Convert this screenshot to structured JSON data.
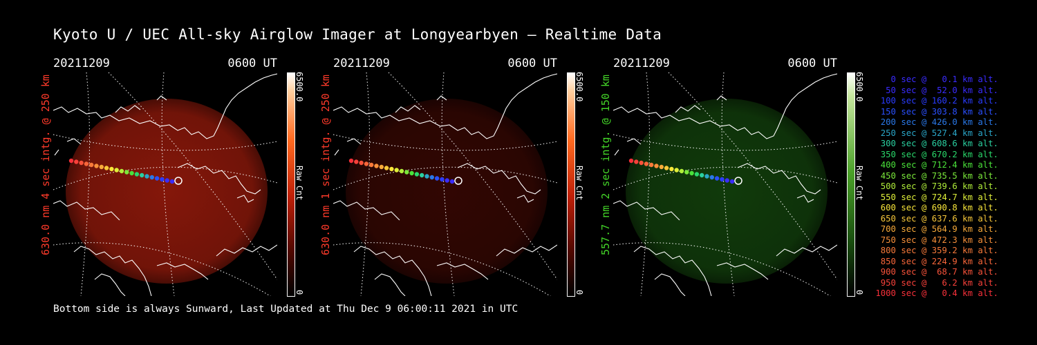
{
  "title": "Kyoto U / UEC All-sky Airglow Imager at Longyearbyen — Realtime Data",
  "footer": "Bottom side is always Sunward, Last Updated at Thu Dec  9 06:00:11 2021 in UTC",
  "panels": [
    {
      "date": "20211209",
      "time": "0600 UT",
      "label": "630.0 nm 4 sec intg. @ 250 km",
      "label_color": "#ff3a2a",
      "cbar_max": "6500.0",
      "cbar_unit": "Raw Cnt",
      "cbar_zero": "0",
      "glow": "#b8200e",
      "glow_opacity": 0.72,
      "ramp": "red"
    },
    {
      "date": "20211209",
      "time": "0600 UT",
      "label": "630.0 nm 1 sec intg. @ 250 km",
      "label_color": "#ff3a2a",
      "cbar_max": "6500.0",
      "cbar_unit": "Raw Cnt",
      "cbar_zero": "0",
      "glow": "#5a0c05",
      "glow_opacity": 0.55,
      "ramp": "red"
    },
    {
      "date": "20211209",
      "time": "0600 UT",
      "label": "557.7 nm 2 sec intg. @ 150 km",
      "label_color": "#44d628",
      "cbar_max": "6500.0",
      "cbar_unit": "Raw Cnt",
      "cbar_zero": "0",
      "glow": "#1e6a14",
      "glow_opacity": 0.55,
      "ramp": "green"
    }
  ],
  "legend": [
    {
      "text": "0 sec @   0.1 km alt.",
      "color": "#3a2cff"
    },
    {
      "text": "50 sec @  52.0 km alt.",
      "color": "#3a2cff"
    },
    {
      "text": "100 sec @ 160.2 km alt.",
      "color": "#2a3cff"
    },
    {
      "text": "150 sec @ 303.8 km alt.",
      "color": "#2a50ff"
    },
    {
      "text": "200 sec @ 426.0 km alt.",
      "color": "#2a78e8"
    },
    {
      "text": "250 sec @ 527.4 km alt.",
      "color": "#2aa6c8"
    },
    {
      "text": "300 sec @ 608.6 km alt.",
      "color": "#2ad0a0"
    },
    {
      "text": "350 sec @ 670.2 km alt.",
      "color": "#2ad86a"
    },
    {
      "text": "400 sec @ 712.4 km alt.",
      "color": "#4ae23a"
    },
    {
      "text": "450 sec @ 735.5 km alt.",
      "color": "#7ae83a"
    },
    {
      "text": "500 sec @ 739.6 km alt.",
      "color": "#b0ee3a"
    },
    {
      "text": "550 sec @ 724.7 km alt.",
      "color": "#e0f03a"
    },
    {
      "text": "600 sec @ 690.8 km alt.",
      "color": "#f8e63a"
    },
    {
      "text": "650 sec @ 637.6 km alt.",
      "color": "#f8c83a"
    },
    {
      "text": "700 sec @ 564.9 km alt.",
      "color": "#f8aa3a"
    },
    {
      "text": "750 sec @ 472.3 km alt.",
      "color": "#f8903a"
    },
    {
      "text": "800 sec @ 359.2 km alt.",
      "color": "#f87a3a"
    },
    {
      "text": "850 sec @ 224.9 km alt.",
      "color": "#f8663a"
    },
    {
      "text": "900 sec @  68.7 km alt.",
      "color": "#f8523a"
    },
    {
      "text": "950 sec @   6.2 km alt.",
      "color": "#f8403a"
    },
    {
      "text": "1000 sec @   0.4 km alt.",
      "color": "#f8303a"
    }
  ]
}
